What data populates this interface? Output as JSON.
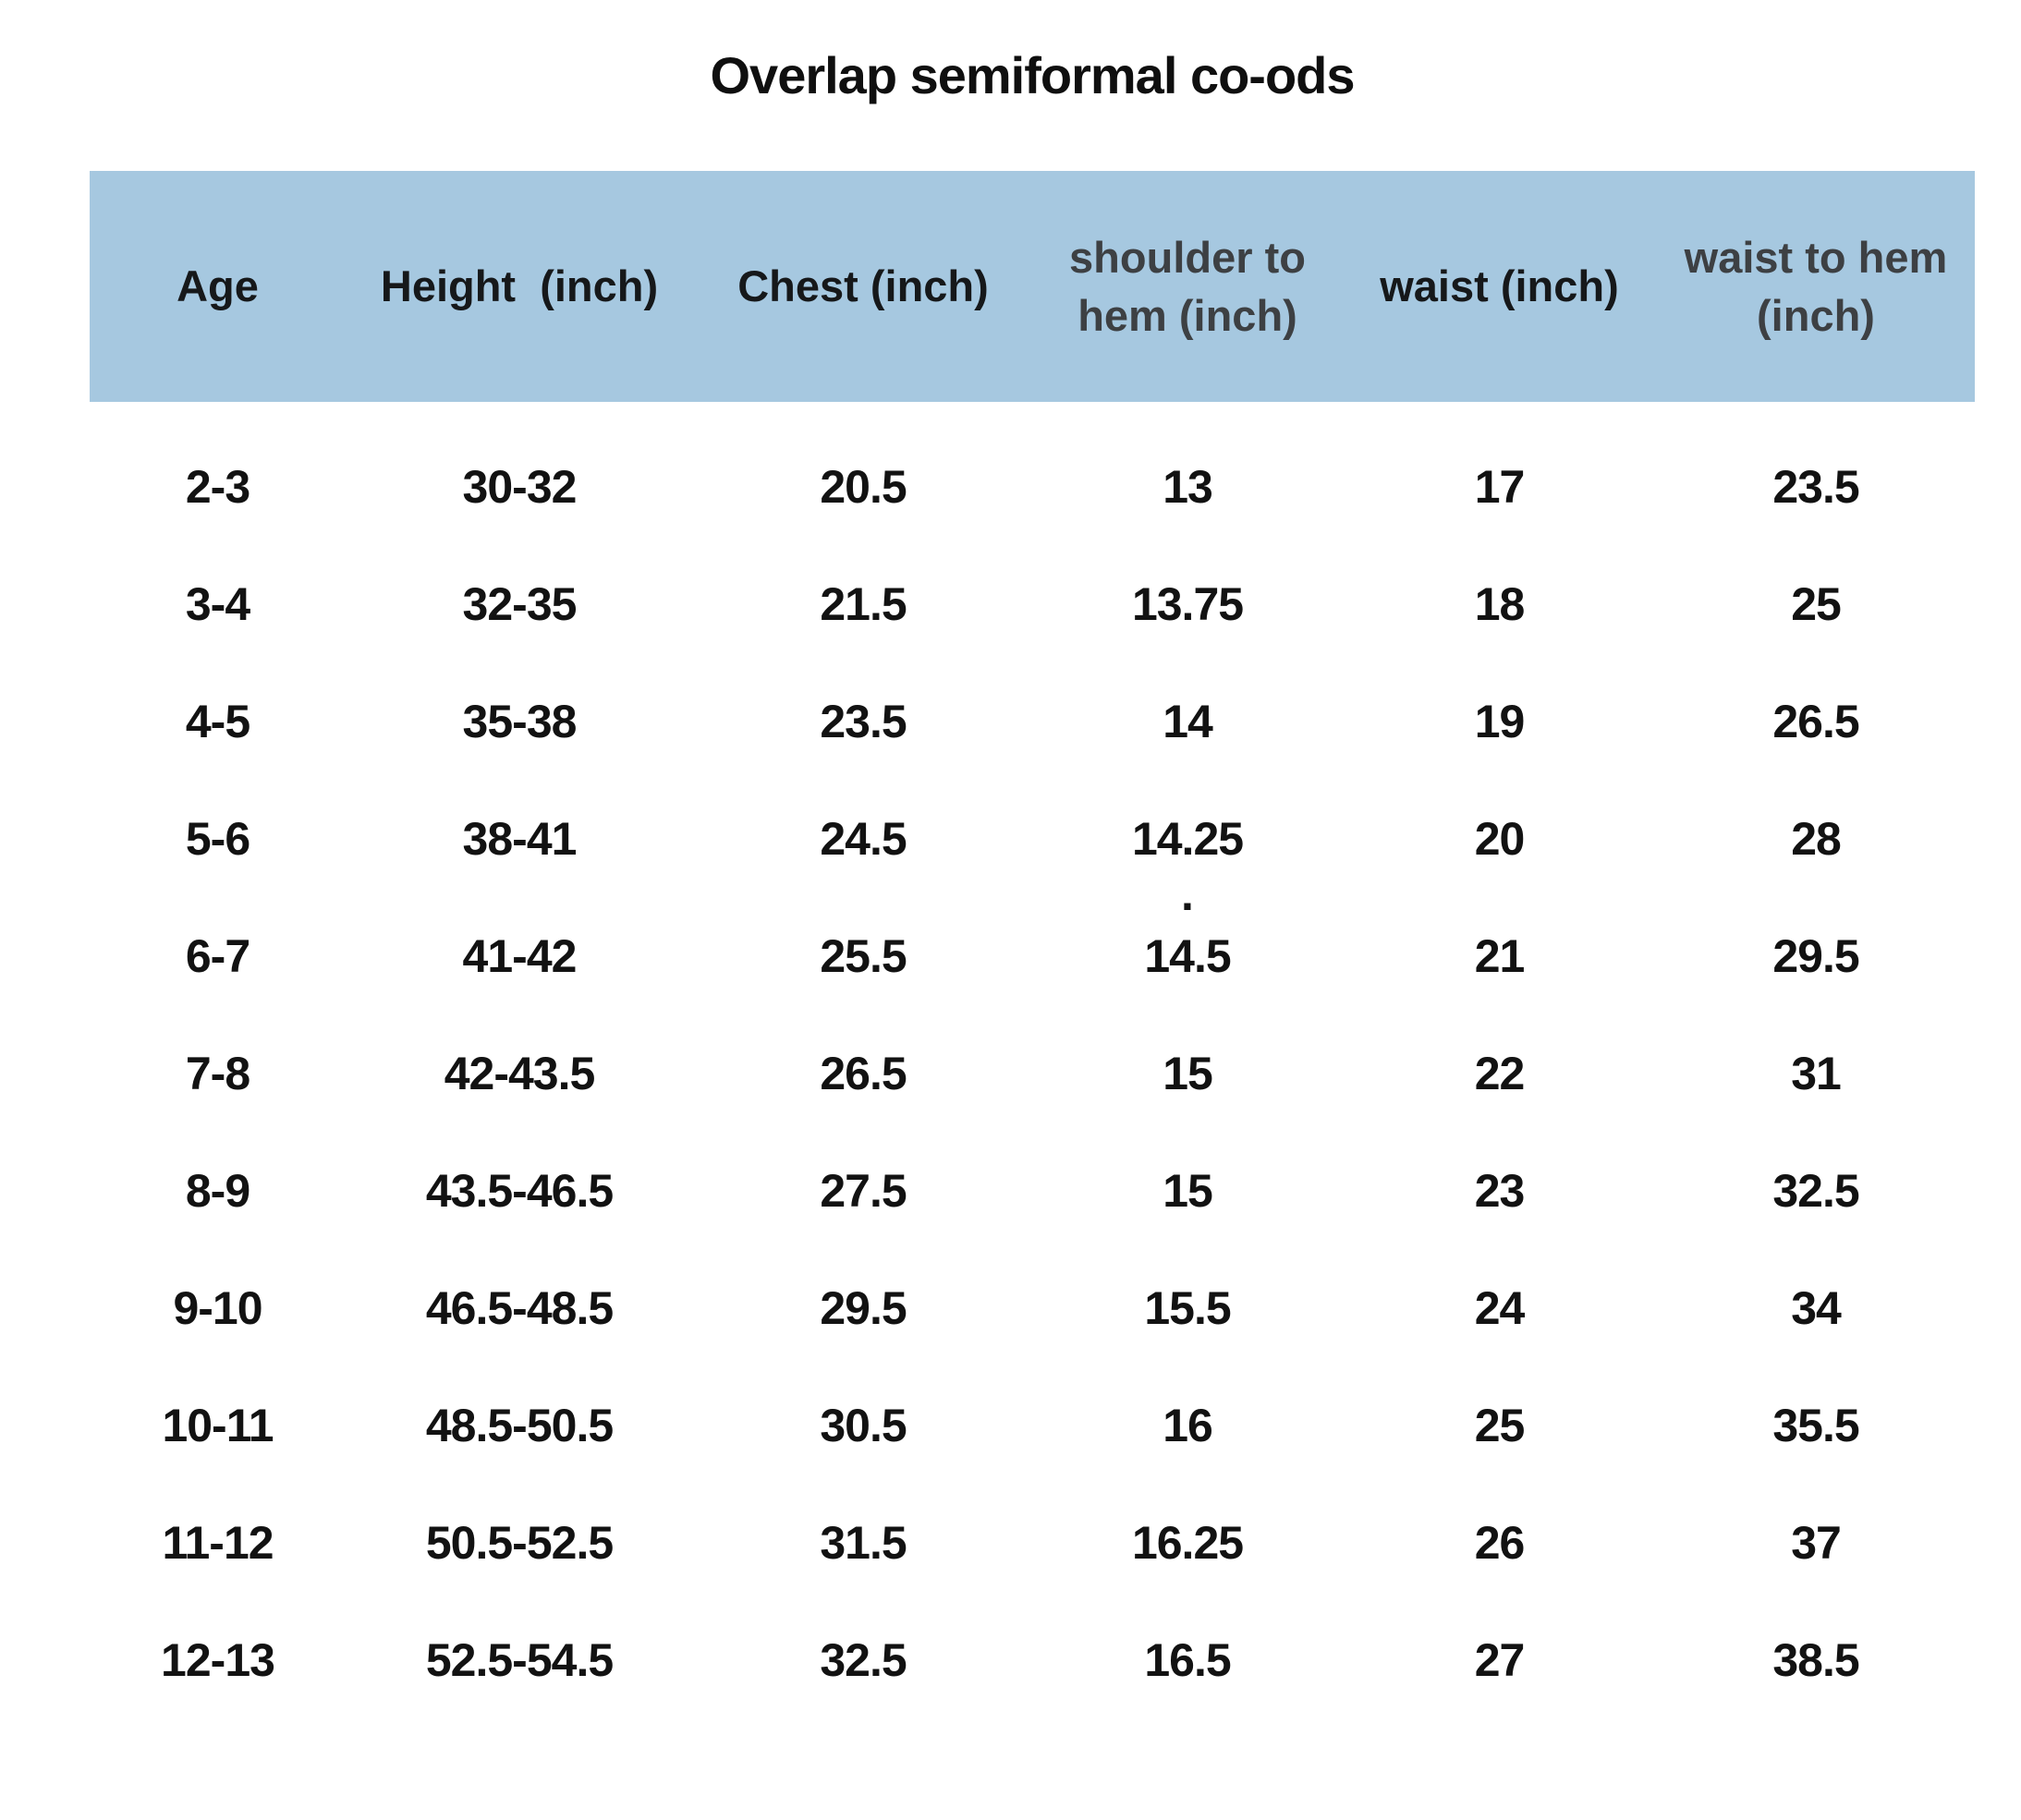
{
  "title": "Overlap semiformal co-ods",
  "chart_data": {
    "type": "table",
    "title": "Overlap semiformal co-ods",
    "columns": [
      "Age",
      "Height  (inch)",
      "Chest (inch)",
      "shoulder to hem (inch)",
      "waist (inch)",
      "waist to hem (inch)"
    ],
    "rows": [
      [
        "2-3",
        "30-32",
        "20.5",
        "13",
        "17",
        "23.5"
      ],
      [
        "3-4",
        "32-35",
        "21.5",
        "13.75",
        "18",
        "25"
      ],
      [
        "4-5",
        "35-38",
        "23.5",
        "14",
        "19",
        "26.5"
      ],
      [
        "5-6",
        "38-41",
        "24.5",
        "14.25",
        "20",
        "28"
      ],
      [
        "6-7",
        "41-42",
        "25.5",
        "14.5",
        "21",
        "29.5"
      ],
      [
        "7-8",
        "42-43.5",
        "26.5",
        "15",
        "22",
        "31"
      ],
      [
        "8-9",
        "43.5-46.5",
        "27.5",
        "15",
        "23",
        "32.5"
      ],
      [
        "9-10",
        "46.5-48.5",
        "29.5",
        "15.5",
        "24",
        "34"
      ],
      [
        "10-11",
        "48.5-50.5",
        "30.5",
        "16",
        "25",
        "35.5"
      ],
      [
        "11-12",
        "50.5-52.5",
        "31.5",
        "16.25",
        "26",
        "37"
      ],
      [
        "12-13",
        "52.5-54.5",
        "32.5",
        "16.5",
        "27",
        "38.5"
      ]
    ],
    "stray_dot": ".",
    "layout_hints": "header row shaded blue, no gridlines, all cells center-aligned"
  },
  "colors": {
    "header_bg": "#a6c8e0",
    "header_text_black": "#16181a",
    "header_text_gray": "#3d4043",
    "body_text": "#121212",
    "page_bg": "#ffffff"
  }
}
